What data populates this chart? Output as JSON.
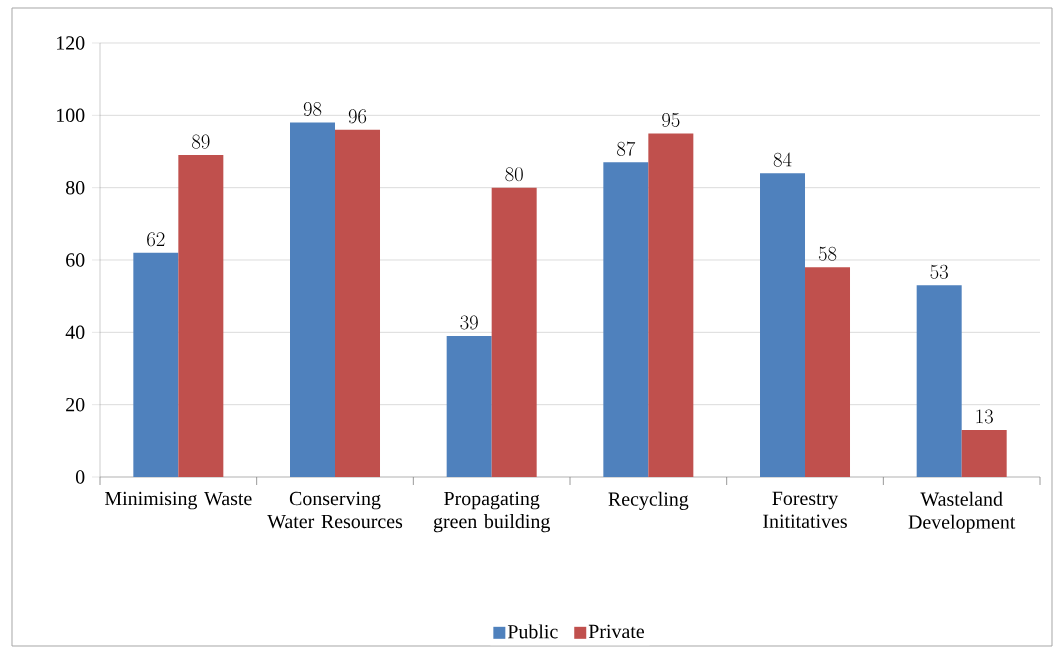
{
  "chart_data": {
    "type": "bar",
    "categories": [
      "Minimising Waste",
      "Conserving Water Resources",
      "Propagating green building",
      "Recycling",
      "Forestry Inititatives",
      "Wasteland Development"
    ],
    "series": [
      {
        "name": "Public",
        "color": "#4f81bd",
        "values": [
          62,
          98,
          39,
          87,
          84,
          53
        ]
      },
      {
        "name": "Private",
        "color": "#c0504d",
        "values": [
          89,
          96,
          80,
          95,
          58,
          13
        ]
      }
    ],
    "ylim": [
      0,
      120
    ],
    "yticks": [
      0,
      20,
      40,
      60,
      80,
      100,
      120
    ],
    "grid": "y",
    "legend": "bottom",
    "data_labels": true
  }
}
